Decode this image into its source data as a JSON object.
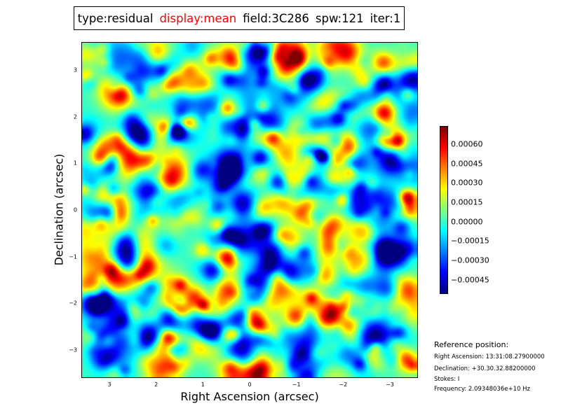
{
  "title": {
    "type": "type:residual",
    "display": "display:mean",
    "field": "field:3C286",
    "spw": "spw:121",
    "iter": "iter:1"
  },
  "colors": {
    "display": "#ff0000"
  },
  "chart_data": {
    "type": "heatmap",
    "colormap": "jet",
    "xlabel": "Right Ascension (arcsec)",
    "ylabel": "Declination (arcsec)",
    "xlim": [
      3.6,
      -3.6
    ],
    "ylim": [
      -3.6,
      3.6
    ],
    "xticks": [
      "3",
      "2",
      "1",
      "0",
      "−1",
      "−2",
      "−3"
    ],
    "xtick_values": [
      3,
      2,
      1,
      0,
      -1,
      -2,
      -3
    ],
    "yticks": [
      "3",
      "2",
      "1",
      "0",
      "−1",
      "−2",
      "−3"
    ],
    "ytick_values": [
      3,
      2,
      1,
      0,
      -1,
      -2,
      -3
    ],
    "colorbar": {
      "range": [
        -0.00056,
        0.00074
      ],
      "ticks": [
        "0.00060",
        "0.00045",
        "0.00030",
        "0.00015",
        "0.00000",
        "−0.00015",
        "−0.00030",
        "−0.00045"
      ],
      "tick_values": [
        0.0006,
        0.00045,
        0.0003,
        0.00015,
        0,
        -0.00015,
        -0.0003,
        -0.00045
      ]
    }
  },
  "reference": {
    "heading": "Reference position:",
    "ra": "Right Ascension: 13:31:08.27900000",
    "dec": "Declination: +30.30.32.88200000",
    "stokes": "Stokes: I",
    "freq": "Frequency: 2.09348036e+10 Hz"
  }
}
